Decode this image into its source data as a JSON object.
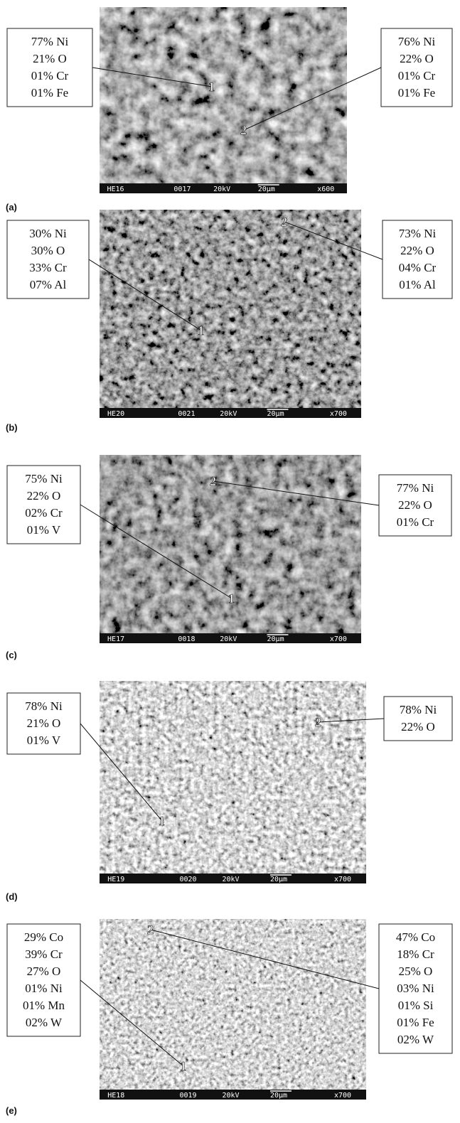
{
  "panels": [
    {
      "label": "(a)",
      "left": [
        "77% Ni",
        "21% O",
        "01% Cr",
        "01% Fe"
      ],
      "right": [
        "76% Ni",
        "22% O",
        "01% Cr",
        "01% Fe"
      ],
      "points": [
        "1",
        "2"
      ],
      "info": [
        "HE16",
        "0017",
        "20kV",
        "20µm",
        "x600"
      ]
    },
    {
      "label": "(b)",
      "left": [
        "30% Ni",
        "30% O",
        "33% Cr",
        "07% Al"
      ],
      "right": [
        "73% Ni",
        "22% O",
        "04% Cr",
        "01% Al"
      ],
      "points": [
        "1",
        "2"
      ],
      "info": [
        "HE20",
        "0021",
        "20kV",
        "20µm",
        "x700"
      ]
    },
    {
      "label": "(c)",
      "left": [
        "75% Ni",
        "22% O",
        "02% Cr",
        "01% V"
      ],
      "right": [
        "77% Ni",
        "22% O",
        "01% Cr"
      ],
      "points": [
        "1",
        "2"
      ],
      "info": [
        "HE17",
        "0018",
        "20kV",
        "20µm",
        "x700"
      ]
    },
    {
      "label": "(d)",
      "left": [
        "78% Ni",
        "21% O",
        "01% V"
      ],
      "right": [
        "78% Ni",
        "22% O"
      ],
      "points": [
        "1",
        "2"
      ],
      "info": [
        "HE19",
        "0020",
        "20kV",
        "20µm",
        "x700"
      ]
    },
    {
      "label": "(e)",
      "left": [
        "29% Co",
        "39% Cr",
        "27% O",
        "01% Ni",
        "01% Mn",
        "02% W"
      ],
      "right": [
        "47% Co",
        "18% Cr",
        "25% O",
        "03% Ni",
        "01% Si",
        "01% Fe",
        "02% W"
      ],
      "points": [
        "1",
        "2"
      ],
      "info": [
        "HE18",
        "0019",
        "20kV",
        "20µm",
        "x700"
      ]
    }
  ]
}
